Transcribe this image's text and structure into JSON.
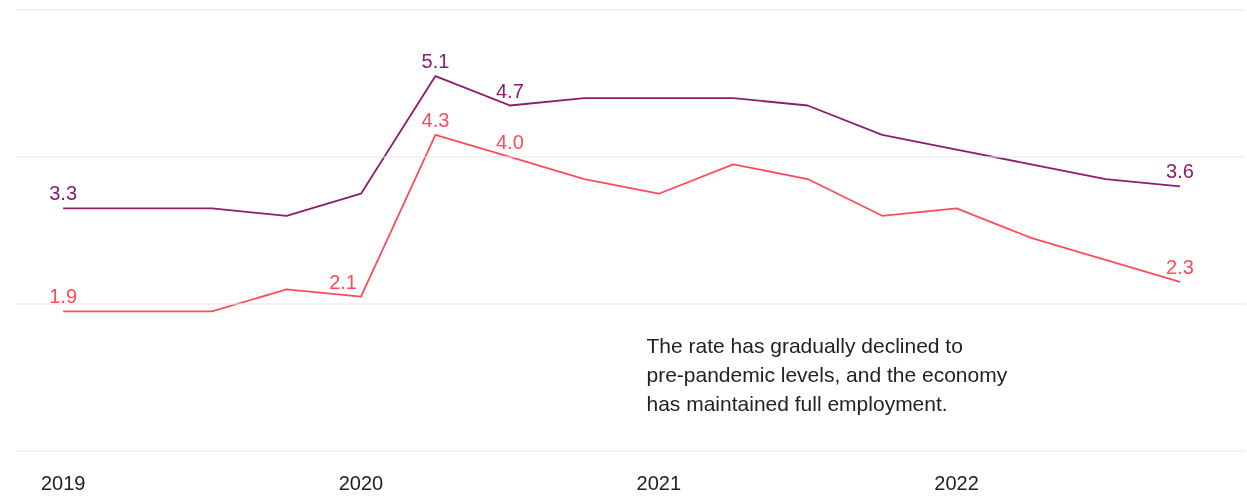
{
  "chart_data": {
    "type": "line",
    "x": [
      2019.0,
      2019.25,
      2019.5,
      2019.75,
      2020.0,
      2020.25,
      2020.5,
      2020.75,
      2021.0,
      2021.25,
      2021.5,
      2021.75,
      2022.0,
      2022.25,
      2022.5,
      2022.75
    ],
    "series": [
      {
        "color": "#8c1c6e",
        "values": [
          3.3,
          3.3,
          3.3,
          3.2,
          3.5,
          5.1,
          4.7,
          4.8,
          4.8,
          4.8,
          4.7,
          4.3,
          4.1,
          3.9,
          3.7,
          3.6
        ],
        "value_labels": [
          "3.3",
          null,
          null,
          null,
          null,
          "5.1",
          "4.7",
          null,
          null,
          null,
          null,
          null,
          null,
          null,
          null,
          "3.6"
        ]
      },
      {
        "color": "#ff4b5c",
        "values": [
          1.9,
          1.9,
          1.9,
          2.2,
          2.1,
          4.3,
          4.0,
          3.7,
          3.5,
          3.9,
          3.7,
          3.2,
          3.3,
          2.9,
          2.6,
          2.3
        ],
        "value_labels": [
          "1.9",
          null,
          null,
          null,
          "2.1",
          "4.3",
          "4.0",
          null,
          null,
          null,
          null,
          null,
          null,
          null,
          null,
          "2.3"
        ]
      }
    ],
    "xlim": [
      2018.84,
      2022.97
    ],
    "xticks": [
      2019,
      2020,
      2021,
      2022
    ],
    "ref_lines": [
      {
        "axis": "y",
        "value": 0,
        "color": "#e6e6e6"
      },
      {
        "axis": "y",
        "value": 2,
        "color": "#e6e6e6"
      },
      {
        "axis": "y",
        "value": 4,
        "color": "#e6e6e6"
      },
      {
        "axis": "y",
        "value": 6,
        "color": "#e6e6e6"
      }
    ],
    "tick_labels": "x",
    "marker": "none",
    "line_style": "solid",
    "annotations": [
      "The rate has gradually declined to\npre-pandemic levels, and the economy\nhas maintained full employment."
    ]
  }
}
